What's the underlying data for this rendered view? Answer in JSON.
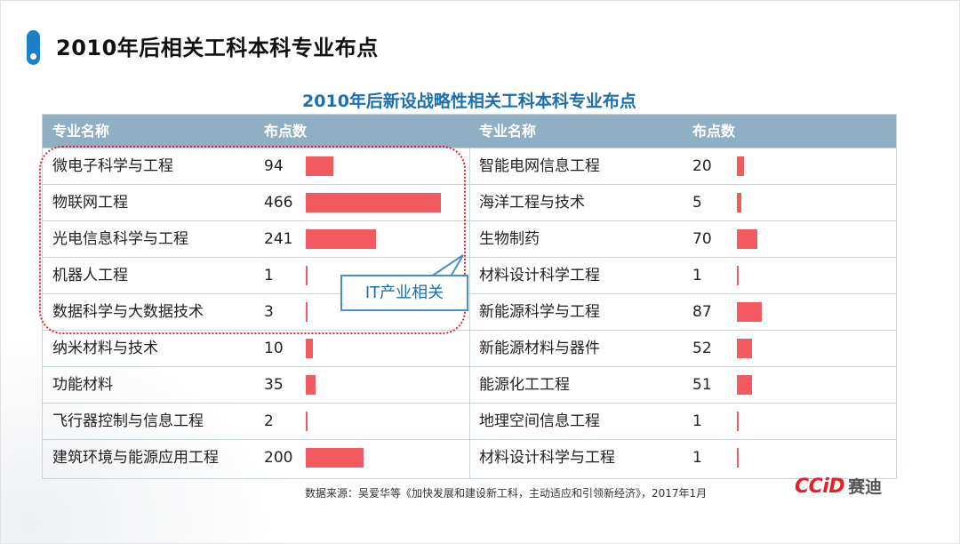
{
  "page_title": "2010年后相关工科本科专业布点",
  "chart_data": {
    "type": "table",
    "title": "2010年后新设战略性相关工科本科专业布点",
    "columns": [
      "专业名称",
      "布点数",
      "专业名称",
      "布点数"
    ],
    "left": [
      {
        "name": "微电子科学与工程",
        "value": 94
      },
      {
        "name": "物联网工程",
        "value": 466
      },
      {
        "name": "光电信息科学与工程",
        "value": 241
      },
      {
        "name": "机器人工程",
        "value": 1
      },
      {
        "name": "数据科学与大数据技术",
        "value": 3
      },
      {
        "name": "纳米材料与技术",
        "value": 10
      },
      {
        "name": "功能材料",
        "value": 35
      },
      {
        "name": "飞行器控制与信息工程",
        "value": 2
      },
      {
        "name": "建筑环境与能源应用工程",
        "value": 200
      }
    ],
    "right": [
      {
        "name": "智能电网信息工程",
        "value": 20
      },
      {
        "name": "海洋工程与技术",
        "value": 5
      },
      {
        "name": "生物制药",
        "value": 70
      },
      {
        "name": "材料设计科学工程",
        "value": 1
      },
      {
        "name": "新能源科学与工程",
        "value": 87
      },
      {
        "name": "新能源材料与器件",
        "value": 52
      },
      {
        "name": "能源化工工程",
        "value": 51
      },
      {
        "name": "地理空间信息工程",
        "value": 1
      },
      {
        "name": "材料设计科学与工程",
        "value": 1
      }
    ],
    "annotation": "IT产业相关",
    "highlighted_left_rows": [
      0,
      1,
      2,
      3,
      4
    ],
    "bar_color": "#f25a5f",
    "header_color": "#8fb0c4"
  },
  "source": "数据来源：吴爱华等《加快发展和建设新工科，主动适应和引领新经济》，2017年1月",
  "logo": {
    "mark": "CCiD",
    "text": "赛迪"
  }
}
